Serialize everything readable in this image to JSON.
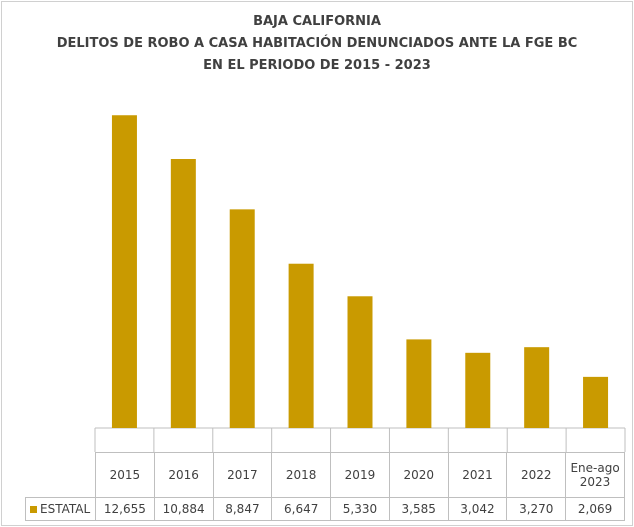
{
  "chart_data": {
    "type": "bar",
    "title": [
      "BAJA CALIFORNIA",
      "DELITOS DE ROBO A CASA HABITACIÓN DENUNCIADOS ANTE LA FGE BC",
      "EN EL PERIODO DE 2015 - 2023"
    ],
    "categories": [
      "2015",
      "2016",
      "2017",
      "2018",
      "2019",
      "2020",
      "2021",
      "2022",
      "Ene-ago 2023"
    ],
    "series": [
      {
        "name": "ESTATAL",
        "color": "#c99a00",
        "values": [
          12655,
          10884,
          8847,
          6647,
          5330,
          3585,
          3042,
          3270,
          2069
        ],
        "value_labels": [
          "12,655",
          "10,884",
          "8,847",
          "6,647",
          "5,330",
          "3,585",
          "3,042",
          "3,270",
          "2,069"
        ]
      }
    ],
    "ylim": [
      0,
      14000
    ]
  }
}
